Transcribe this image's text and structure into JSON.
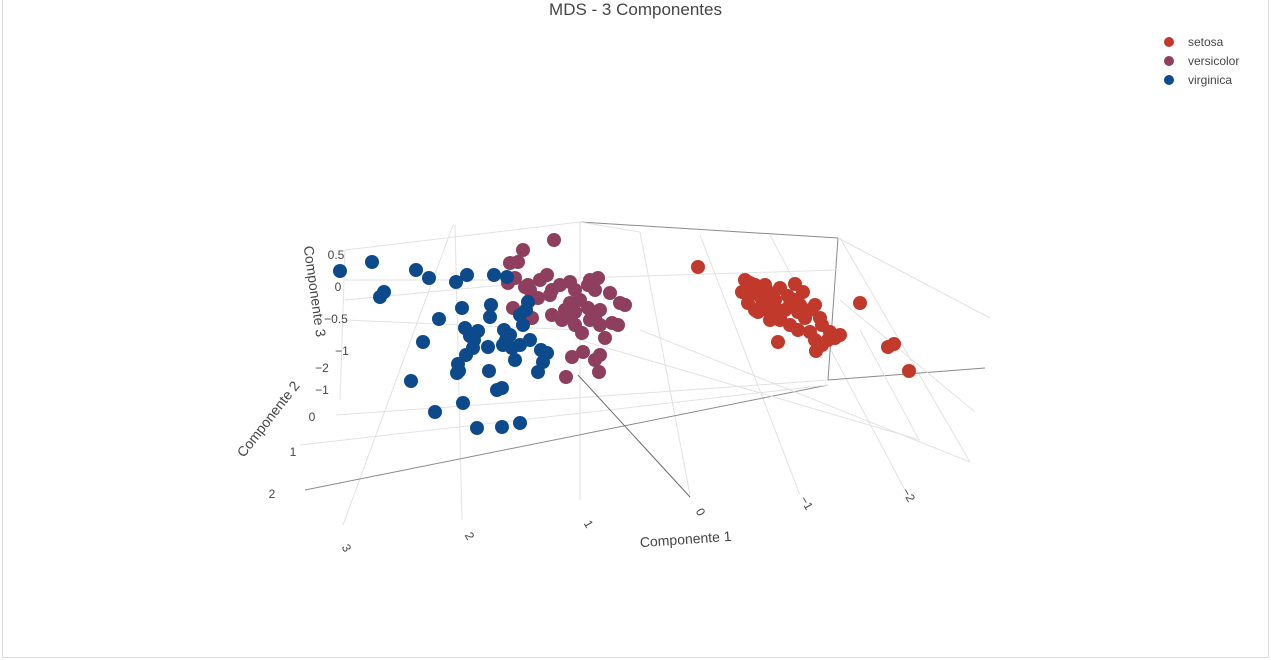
{
  "chart_data": {
    "type": "scatter",
    "title": "MDS - 3 Componentes",
    "xlabel": "Componente 1",
    "ylabel": "Componente 2",
    "zlabel": "Componente 3",
    "x_ticks": [
      "3",
      "2",
      "1",
      "0",
      "−1",
      "−2"
    ],
    "y_ticks": [
      "2",
      "1",
      "0",
      "−1",
      "−2"
    ],
    "z_ticks": [
      "0.5",
      "0",
      "−0.5",
      "−1"
    ],
    "legend_position": "top-right",
    "grid": true,
    "series": [
      {
        "name": "setosa",
        "color": "#c0392b"
      },
      {
        "name": "versicolor",
        "color": "#8e3f5e"
      },
      {
        "name": "virginica",
        "color": "#0c4a8c"
      }
    ]
  }
}
